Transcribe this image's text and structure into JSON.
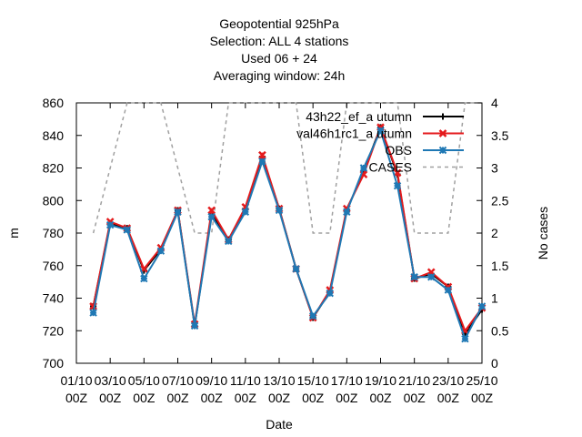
{
  "chart_data": {
    "type": "line",
    "title_lines": [
      "Geopotential 925hPa",
      "Selection: ALL       4 stations",
      "Used  06  + 24",
      "Averaging window: 24h"
    ],
    "xlabel": "Date",
    "ylabel": "m",
    "y2label": "No cases",
    "xlim": [
      0,
      24
    ],
    "ylim": [
      700,
      860
    ],
    "y2lim": [
      0,
      4
    ],
    "yticks": [
      700,
      720,
      740,
      760,
      780,
      800,
      820,
      840,
      860
    ],
    "y2ticks": [
      "0",
      "0.5",
      "1",
      "1.5",
      "2",
      "2.5",
      "3",
      "3.5",
      "4"
    ],
    "xticks": [
      {
        "x": 0,
        "l1": "01/10",
        "l2": "00Z"
      },
      {
        "x": 2,
        "l1": "03/10",
        "l2": "00Z"
      },
      {
        "x": 4,
        "l1": "05/10",
        "l2": "00Z"
      },
      {
        "x": 6,
        "l1": "07/10",
        "l2": "00Z"
      },
      {
        "x": 8,
        "l1": "09/10",
        "l2": "00Z"
      },
      {
        "x": 10,
        "l1": "11/10",
        "l2": "00Z"
      },
      {
        "x": 12,
        "l1": "13/10",
        "l2": "00Z"
      },
      {
        "x": 14,
        "l1": "15/10",
        "l2": "00Z"
      },
      {
        "x": 16,
        "l1": "17/10",
        "l2": "00Z"
      },
      {
        "x": 18,
        "l1": "19/10",
        "l2": "00Z"
      },
      {
        "x": 20,
        "l1": "21/10",
        "l2": "00Z"
      },
      {
        "x": 22,
        "l1": "23/10",
        "l2": "00Z"
      },
      {
        "x": 24,
        "l1": "25/10",
        "l2": "00Z"
      }
    ],
    "x": [
      1,
      2,
      3,
      4,
      5,
      6,
      7,
      8,
      9,
      10,
      11,
      12,
      13,
      14,
      15,
      16,
      17,
      18,
      19,
      20,
      21,
      22,
      23,
      24
    ],
    "series": [
      {
        "name": "43h22_ef_a utumn",
        "color": "#000000",
        "marker": "plus",
        "axis": "y",
        "values": [
          735,
          786,
          783,
          757,
          770,
          794,
          723,
          792,
          776,
          795,
          827,
          795,
          758,
          728,
          744,
          794,
          818,
          845,
          816,
          752,
          755,
          747,
          718,
          733
        ]
      },
      {
        "name": "val46h1rc1_a utumn",
        "color": "#e41a1c",
        "marker": "x",
        "axis": "y",
        "values": [
          735,
          787,
          783,
          758,
          771,
          794,
          724,
          794,
          776,
          796,
          828,
          795,
          758,
          728,
          745,
          795,
          816,
          845,
          817,
          752,
          756,
          747,
          720,
          734
        ]
      },
      {
        "name": "OBS",
        "color": "#1f78b4",
        "marker": "star",
        "axis": "y",
        "values": [
          731,
          785,
          782,
          752,
          769,
          793,
          723,
          790,
          775,
          793,
          824,
          794,
          758,
          729,
          743,
          793,
          820,
          843,
          809,
          753,
          753,
          745,
          715,
          735
        ]
      },
      {
        "name": "CASES",
        "color": "#a0a0a0",
        "dash": true,
        "axis": "y2",
        "values": [
          2,
          3,
          4,
          4,
          4,
          3,
          2,
          2,
          4,
          4,
          4,
          4,
          4,
          2,
          2,
          4,
          4,
          4,
          4,
          2,
          2,
          2,
          4,
          4
        ]
      }
    ]
  }
}
